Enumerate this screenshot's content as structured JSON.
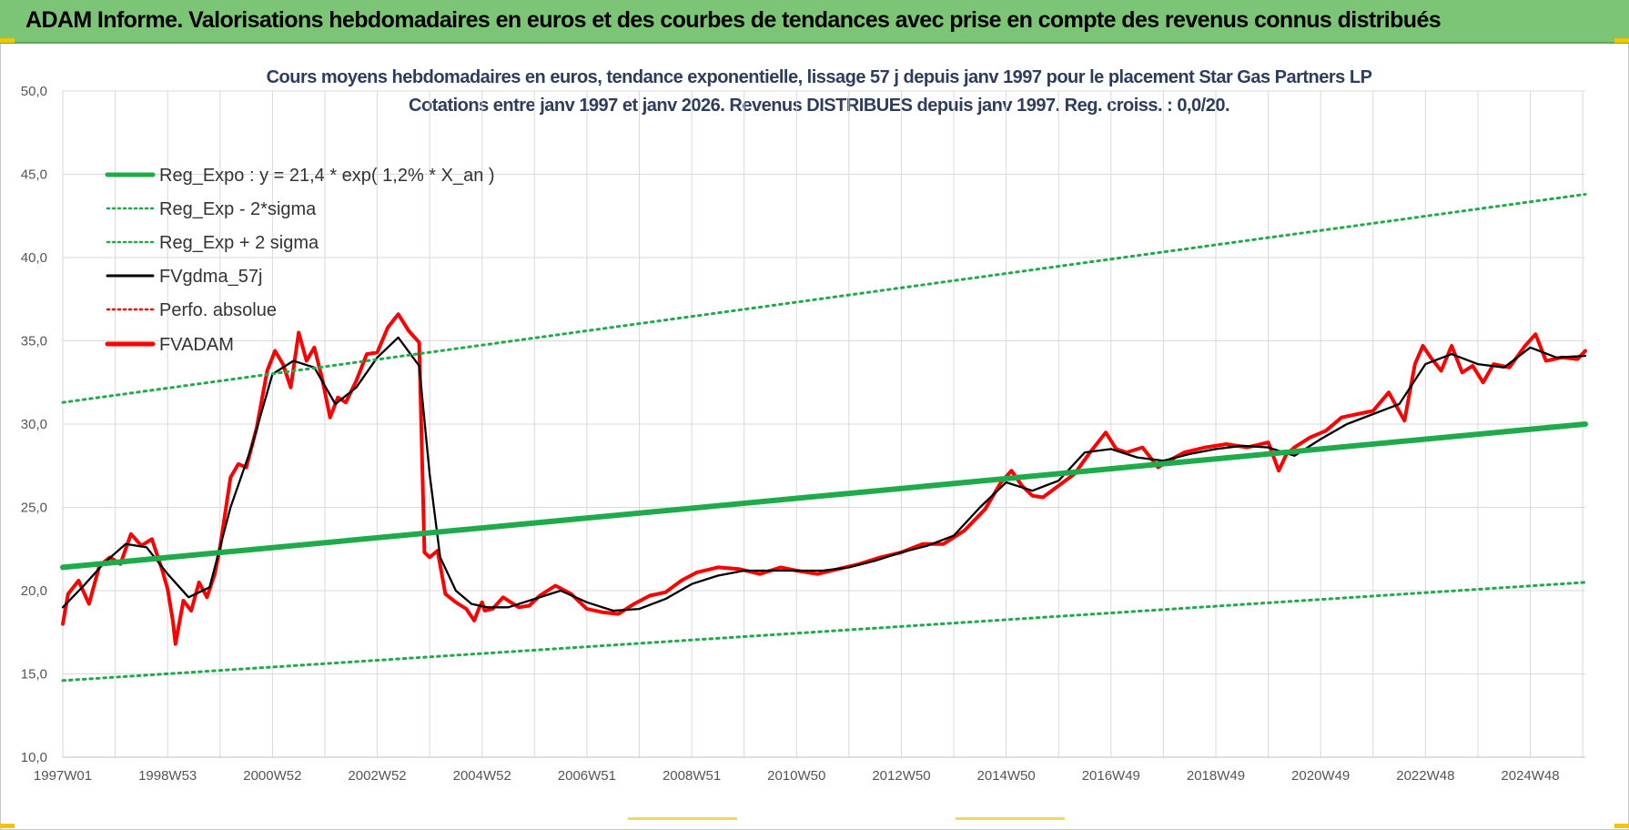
{
  "banner": {
    "title": "ADAM Informe. Valorisations hebdomadaires en euros et des courbes de tendances avec prise en compte des revenus connus distribués"
  },
  "colors": {
    "banner_bg": "#7cc576",
    "trend_green": "#1faa4b",
    "fvadam_red": "#ff0000",
    "fvgdma_black": "#000000",
    "grid": "#d9d9d9",
    "title_text": "#2f3d5c",
    "accent_yellow": "#f2c500"
  },
  "chart_data": {
    "type": "line",
    "title": "Cours moyens hebdomadaires en euros, tendance exponentielle, lissage 57 j depuis janv 1997 pour le placement Star Gas Partners LP",
    "subtitle": "Cotations entre janv 1997 et janv 2026. Revenus DISTRIBUES depuis janv 1997. Reg. croiss. : 0,0/20.",
    "xlabel": "",
    "ylabel": "",
    "xlim": [
      1997.0,
      2026.05
    ],
    "ylim": [
      10,
      50
    ],
    "ytick_values": [
      10,
      15,
      20,
      25,
      30,
      35,
      40,
      45,
      50
    ],
    "yticks": [
      "10,0",
      "15,0",
      "20,0",
      "25,0",
      "30,0",
      "35,0",
      "40,0",
      "45,0",
      "50,0"
    ],
    "xticks": [
      {
        "x": 1997.0,
        "label": "1997W01"
      },
      {
        "x": 1999.0,
        "label": "1998W53"
      },
      {
        "x": 2001.0,
        "label": "2000W52"
      },
      {
        "x": 2003.0,
        "label": "2002W52"
      },
      {
        "x": 2005.0,
        "label": "2004W52"
      },
      {
        "x": 2007.0,
        "label": "2006W51"
      },
      {
        "x": 2009.0,
        "label": "2008W51"
      },
      {
        "x": 2011.0,
        "label": "2010W50"
      },
      {
        "x": 2013.0,
        "label": "2012W50"
      },
      {
        "x": 2015.0,
        "label": "2014W50"
      },
      {
        "x": 2017.0,
        "label": "2016W49"
      },
      {
        "x": 2019.0,
        "label": "2018W49"
      },
      {
        "x": 2021.0,
        "label": "2020W49"
      },
      {
        "x": 2023.0,
        "label": "2022W48"
      },
      {
        "x": 2025.0,
        "label": "2024W48"
      }
    ],
    "grid": true,
    "legend_position": "top-left",
    "legend": [
      {
        "label": "Reg_Expo : y = 21,4 * exp( 1,2% *  X_an )",
        "color": "#1faa4b",
        "style": "solid-thick"
      },
      {
        "label": "Reg_Exp - 2*sigma",
        "color": "#1faa4b",
        "style": "dotted"
      },
      {
        "label": "Reg_Exp + 2 sigma",
        "color": "#1faa4b",
        "style": "dotted"
      },
      {
        "label": "FVgdma_57j",
        "color": "#000000",
        "style": "solid"
      },
      {
        "label": "Perfo. absolue",
        "color": "#ff0000",
        "style": "dotted"
      },
      {
        "label": "FVADAM",
        "color": "#ff0000",
        "style": "solid-thick"
      }
    ],
    "series": [
      {
        "name": "Reg_Expo : y = 21,4 * exp( 1,2% *  X_an )",
        "color": "#1faa4b",
        "style": "solid",
        "x": [
          1997.0,
          2026.05
        ],
        "y": [
          21.4,
          30.0
        ]
      },
      {
        "name": "Reg_Exp - 2*sigma",
        "color": "#1faa4b",
        "style": "dotted",
        "x": [
          1997.0,
          2026.05
        ],
        "y": [
          14.6,
          20.5
        ]
      },
      {
        "name": "Reg_Exp + 2 sigma",
        "color": "#1faa4b",
        "style": "dotted",
        "x": [
          1997.0,
          2026.05
        ],
        "y": [
          31.3,
          43.8
        ]
      },
      {
        "name": "FVADAM",
        "color": "#ff0000",
        "style": "solid",
        "x": [
          1997.0,
          1997.1,
          1997.3,
          1997.5,
          1997.7,
          1997.9,
          1998.1,
          1998.3,
          1998.5,
          1998.7,
          1998.9,
          1999.0,
          1999.1,
          1999.15,
          1999.3,
          1999.45,
          1999.6,
          1999.75,
          1999.9,
          2000.0,
          2000.2,
          2000.35,
          2000.5,
          2000.7,
          2000.9,
          2001.05,
          2001.2,
          2001.35,
          2001.5,
          2001.65,
          2001.8,
          2001.95,
          2002.1,
          2002.25,
          2002.4,
          2002.6,
          2002.8,
          2003.0,
          2003.2,
          2003.4,
          2003.6,
          2003.8,
          2003.9,
          2004.0,
          2004.15,
          2004.3,
          2004.5,
          2004.7,
          2004.85,
          2004.95,
          2005.0,
          2005.05,
          2005.2,
          2005.4,
          2005.7,
          2005.9,
          2006.1,
          2006.4,
          2006.7,
          2007.0,
          2007.3,
          2007.6,
          2007.9,
          2008.2,
          2008.5,
          2008.8,
          2009.1,
          2009.5,
          2009.9,
          2010.3,
          2010.7,
          2011.0,
          2011.4,
          2011.8,
          2012.2,
          2012.6,
          2013.0,
          2013.4,
          2013.8,
          2014.2,
          2014.6,
          2014.9,
          2015.1,
          2015.3,
          2015.5,
          2015.7,
          2016.0,
          2016.3,
          2016.6,
          2016.9,
          2017.1,
          2017.3,
          2017.6,
          2017.9,
          2018.1,
          2018.4,
          2018.8,
          2019.2,
          2019.6,
          2020.0,
          2020.2,
          2020.35,
          2020.5,
          2020.8,
          2021.1,
          2021.4,
          2021.7,
          2022.0,
          2022.3,
          2022.6,
          2022.8,
          2022.95,
          2023.1,
          2023.3,
          2023.5,
          2023.7,
          2023.9,
          2024.1,
          2024.3,
          2024.6,
          2024.9,
          2025.1,
          2025.3,
          2025.6,
          2025.9,
          2026.05
        ],
        "y": [
          18.0,
          19.8,
          20.6,
          19.2,
          21.5,
          22.0,
          21.6,
          23.4,
          22.7,
          23.1,
          21.2,
          20.1,
          18.2,
          16.8,
          19.4,
          18.8,
          20.5,
          19.6,
          21.0,
          22.6,
          26.8,
          27.6,
          27.4,
          29.8,
          33.2,
          34.4,
          33.6,
          32.2,
          35.5,
          33.8,
          34.6,
          32.7,
          30.4,
          31.6,
          31.3,
          32.6,
          34.2,
          34.3,
          35.8,
          36.6,
          35.6,
          34.9,
          22.3,
          22.0,
          22.4,
          19.8,
          19.3,
          18.9,
          18.2,
          19.0,
          19.3,
          18.8,
          18.9,
          19.6,
          19.0,
          19.1,
          19.7,
          20.3,
          19.8,
          18.9,
          18.7,
          18.6,
          19.2,
          19.7,
          19.9,
          20.6,
          21.1,
          21.4,
          21.3,
          21.0,
          21.4,
          21.2,
          21.0,
          21.3,
          21.6,
          22.0,
          22.3,
          22.8,
          22.8,
          23.6,
          24.9,
          26.5,
          27.2,
          26.3,
          25.7,
          25.6,
          26.3,
          27.0,
          28.3,
          29.5,
          28.5,
          28.3,
          28.6,
          27.4,
          27.8,
          28.3,
          28.6,
          28.8,
          28.6,
          28.9,
          27.2,
          28.2,
          28.6,
          29.2,
          29.6,
          30.4,
          30.6,
          30.8,
          31.9,
          30.2,
          33.6,
          34.7,
          34.0,
          33.2,
          34.7,
          33.1,
          33.5,
          32.5,
          33.6,
          33.4,
          34.7,
          35.4,
          33.8,
          34.0,
          33.9,
          34.4
        ]
      },
      {
        "name": "FVgdma_57j",
        "color": "#000000",
        "style": "solid",
        "x": [
          1997.0,
          1997.4,
          1997.8,
          1998.2,
          1998.6,
          1999.0,
          1999.4,
          1999.8,
          2000.2,
          2000.6,
          2001.0,
          2001.4,
          2001.8,
          2002.2,
          2002.6,
          2003.0,
          2003.4,
          2003.8,
          2004.0,
          2004.2,
          2004.5,
          2004.8,
          2005.1,
          2005.5,
          2006.0,
          2006.5,
          2007.0,
          2007.5,
          2008.0,
          2008.5,
          2009.0,
          2009.5,
          2010.0,
          2010.5,
          2011.0,
          2011.5,
          2012.0,
          2012.5,
          2013.0,
          2013.5,
          2014.0,
          2014.5,
          2015.0,
          2015.5,
          2016.0,
          2016.5,
          2017.0,
          2017.5,
          2018.0,
          2018.5,
          2019.0,
          2019.5,
          2020.0,
          2020.5,
          2021.0,
          2021.5,
          2022.0,
          2022.5,
          2023.0,
          2023.5,
          2024.0,
          2024.5,
          2025.0,
          2025.5,
          2026.05
        ],
        "y": [
          19.0,
          20.3,
          21.7,
          22.8,
          22.6,
          21.0,
          19.6,
          20.2,
          25.0,
          28.6,
          33.0,
          33.8,
          33.4,
          31.2,
          32.2,
          34.0,
          35.2,
          33.5,
          27.0,
          22.0,
          20.0,
          19.2,
          19.0,
          19.0,
          19.5,
          20.0,
          19.3,
          18.8,
          18.9,
          19.5,
          20.4,
          20.9,
          21.2,
          21.2,
          21.2,
          21.2,
          21.4,
          21.8,
          22.3,
          22.7,
          23.3,
          25.0,
          26.5,
          26.0,
          26.6,
          28.3,
          28.5,
          28.0,
          27.8,
          28.2,
          28.5,
          28.7,
          28.6,
          28.1,
          29.1,
          30.0,
          30.6,
          31.2,
          33.6,
          34.2,
          33.6,
          33.4,
          34.6,
          34.0,
          34.1
        ]
      },
      {
        "name": "Perfo. absolue",
        "color": "#ff0000",
        "style": "dotted",
        "x": [],
        "y": []
      }
    ]
  }
}
